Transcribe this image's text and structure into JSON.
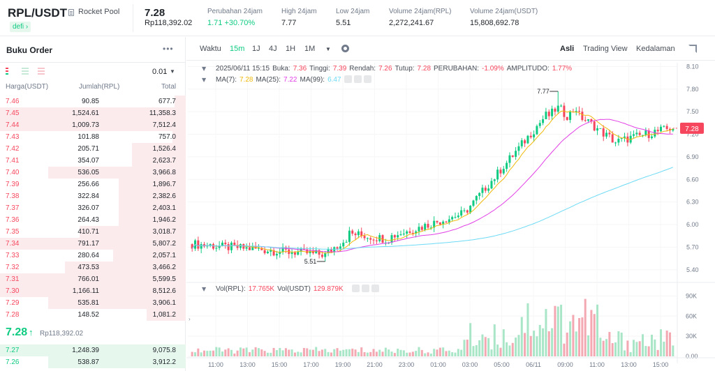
{
  "header": {
    "pair": "RPL/USDT",
    "pair_name": "Rocket Pool",
    "tag": "defi",
    "last_price": "7.28",
    "last_price_local": "Rp118,392.02",
    "stats": [
      {
        "label": "Perubahan 24jam",
        "value": "1.71 +30.70%"
      },
      {
        "label": "High 24jam",
        "value": "7.77"
      },
      {
        "label": "Low 24jam",
        "value": "5.51"
      },
      {
        "label": "Volume 24jam(RPL)",
        "value": "2,272,241.67"
      },
      {
        "label": "Volume 24jam(USDT)",
        "value": "15,808,692.78"
      }
    ]
  },
  "orderbook": {
    "title": "Buku Order",
    "precision": "0.01",
    "col_price": "Harga(USDT)",
    "col_amount": "Jumlah(RPL)",
    "col_total": "Total",
    "asks": [
      [
        "7.46",
        "90.85",
        "677.7",
        0.06
      ],
      [
        "7.45",
        "1,524.61",
        "11,358.3",
        1.0
      ],
      [
        "7.44",
        "1,009.73",
        "7,512.4",
        1.0
      ],
      [
        "7.43",
        "101.88",
        "757.0",
        0.07
      ],
      [
        "7.42",
        "205.71",
        "1,526.4",
        0.29
      ],
      [
        "7.41",
        "354.07",
        "2,623.7",
        0.29
      ],
      [
        "7.40",
        "536.05",
        "3,966.8",
        0.74
      ],
      [
        "7.39",
        "256.66",
        "1,896.7",
        0.36
      ],
      [
        "7.38",
        "322.84",
        "2,382.6",
        0.36
      ],
      [
        "7.37",
        "326.07",
        "2,403.1",
        0.36
      ],
      [
        "7.36",
        "264.43",
        "1,946.2",
        0.36
      ],
      [
        "7.35",
        "410.71",
        "3,018.7",
        0.57
      ],
      [
        "7.34",
        "791.17",
        "5,807.2",
        1.0
      ],
      [
        "7.33",
        "280.64",
        "2,057.1",
        0.39
      ],
      [
        "7.32",
        "473.53",
        "3,466.2",
        0.65
      ],
      [
        "7.31",
        "766.01",
        "5,599.5",
        1.0
      ],
      [
        "7.30",
        "1,166.11",
        "8,512.6",
        1.0
      ],
      [
        "7.29",
        "535.81",
        "3,906.1",
        0.74
      ],
      [
        "7.28",
        "148.52",
        "1,081.2",
        0.21
      ]
    ],
    "mid_price": "7.28",
    "mid_local": "Rp118,392.02",
    "bids": [
      [
        "7.27",
        "1,248.39",
        "9,075.8",
        1.0
      ],
      [
        "7.26",
        "538.87",
        "3,912.2",
        0.74
      ]
    ]
  },
  "toolbar": {
    "time_label": "Waktu",
    "intervals": [
      "15m",
      "1J",
      "4J",
      "1H",
      "1M"
    ],
    "active": "15m",
    "views": [
      "Asli",
      "Trading View",
      "Kedalaman"
    ],
    "active_view": "Asli"
  },
  "legend": {
    "date": "2025/06/11 15:15",
    "buka_label": "Buka:",
    "buka": "7.36",
    "tinggi_label": "Tinggi:",
    "tinggi": "7.39",
    "rendah_label": "Rendah:",
    "rendah": "7.26",
    "tutup_label": "Tutup:",
    "tutup": "7.28",
    "perubahan_label": "PERUBAHAN:",
    "perubahan": "-1.09%",
    "amplitudo_label": "AMPLITUDO:",
    "amplitudo": "1.77%",
    "ma7_label": "MA(7):",
    "ma7": "7.28",
    "ma25_label": "MA(25):",
    "ma25": "7.22",
    "ma99_label": "MA(99):",
    "ma99": "6.47",
    "vol_rpl_label": "Vol(RPL):",
    "vol_rpl": "17.765K",
    "vol_usdt_label": "Vol(USDT)",
    "vol_usdt": "129.879K"
  },
  "colors": {
    "up": "#0ecb81",
    "down": "#f6465d",
    "ma7": "#f0b90b",
    "ma25": "#e23fe6",
    "ma99": "#6cdaf5"
  },
  "chart_data": {
    "type": "candlestick",
    "x_ticks": [
      "11:00",
      "13:00",
      "15:00",
      "17:00",
      "19:00",
      "21:00",
      "23:00",
      "01:00",
      "03:00",
      "05:00",
      "06/11",
      "09:00",
      "11:00",
      "13:00",
      "15:00"
    ],
    "y_ticks": [
      "8.10",
      "7.80",
      "7.50",
      "7.20",
      "6.90",
      "6.60",
      "6.30",
      "6.00",
      "5.70",
      "5.40"
    ],
    "ylim": [
      5.25,
      8.15
    ],
    "vol_ticks": [
      "90K",
      "60K",
      "30K",
      "0.00"
    ],
    "vol_lim": [
      0,
      105
    ],
    "high_label": "7.77",
    "low_label": "5.51",
    "current_price_label": "7.28",
    "ohlc": [],
    "vol": []
  }
}
